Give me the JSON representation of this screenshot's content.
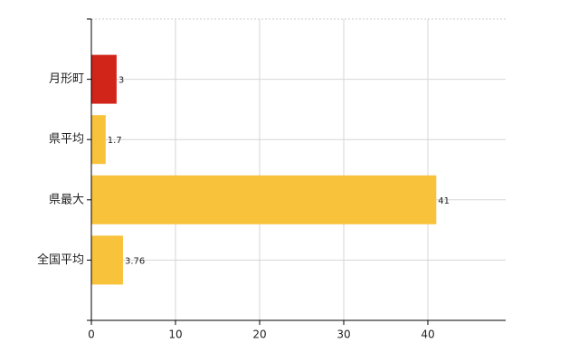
{
  "chart_data": {
    "type": "bar",
    "orientation": "horizontal",
    "categories": [
      "月形町",
      "県平均",
      "県最大",
      "全国平均"
    ],
    "values": [
      3,
      1.7,
      41,
      3.76
    ],
    "colors": [
      "#d2251a",
      "#f8c23a",
      "#f8c23a",
      "#f8c23a"
    ],
    "xlim": [
      0,
      49.25
    ],
    "xticks": [
      0,
      10,
      20,
      30,
      40
    ],
    "grid": true,
    "value_labels_shown": true
  }
}
